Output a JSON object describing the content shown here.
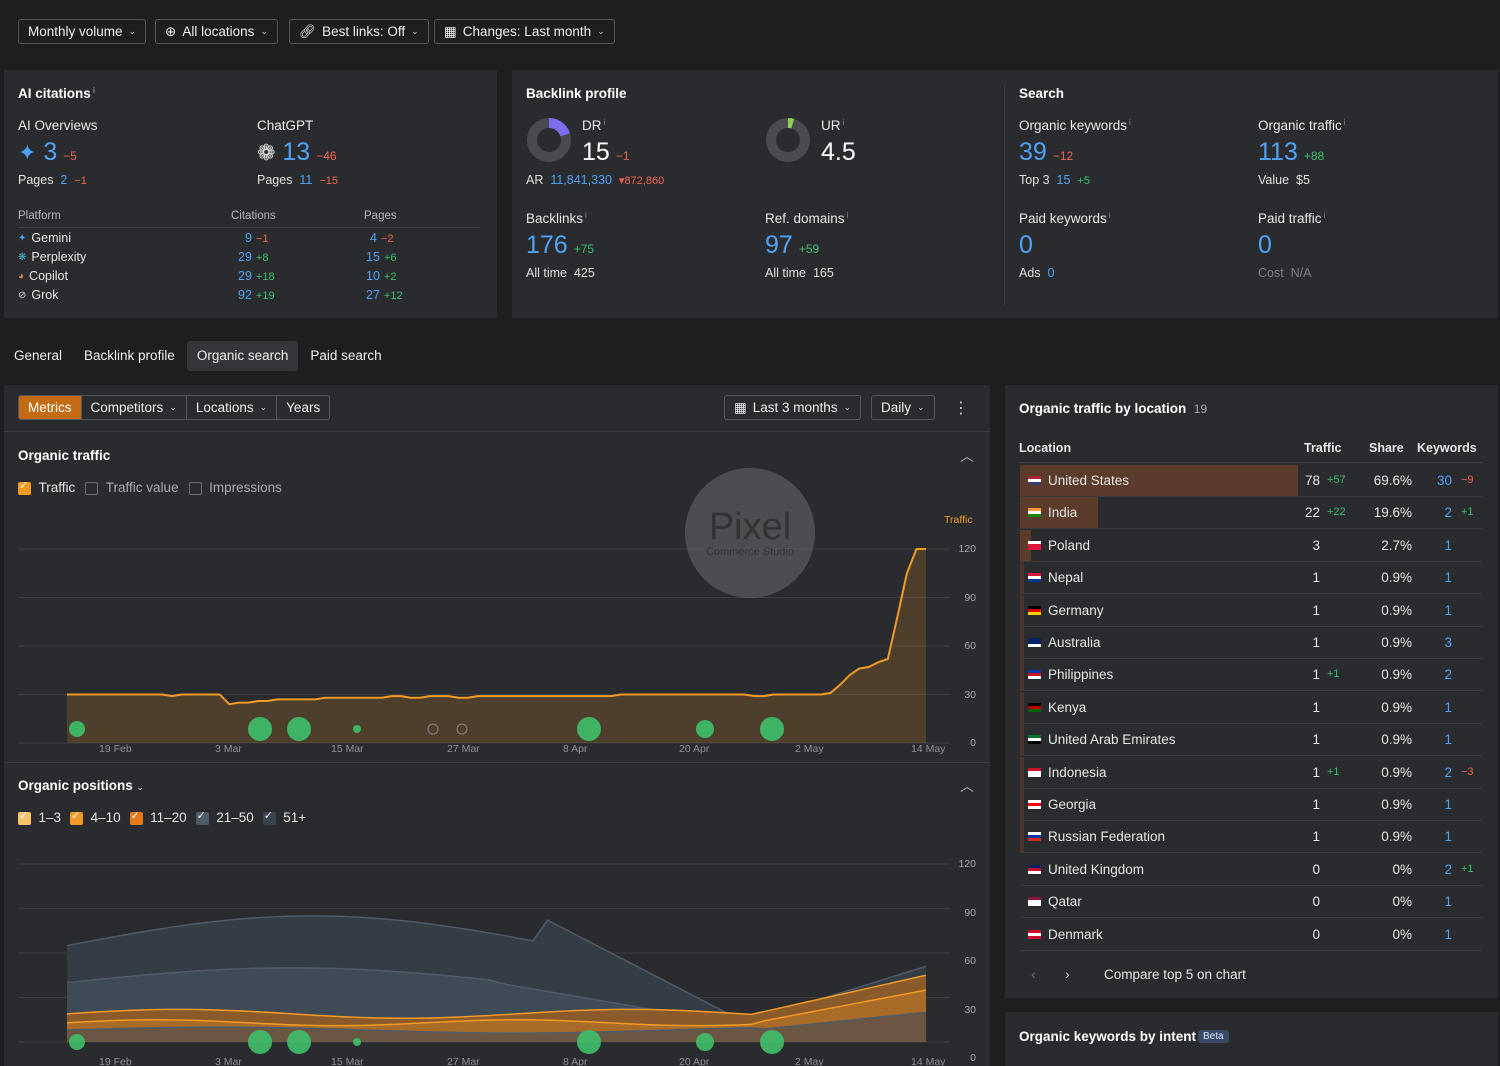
{
  "filters": {
    "volume": "Monthly volume",
    "locations": "All locations",
    "best_links": "Best links: Off",
    "changes": "Changes: Last month"
  },
  "ai_citations": {
    "title": "AI citations",
    "overviews": {
      "label": "AI Overviews",
      "value": "3",
      "delta": "−5",
      "pages_label": "Pages",
      "pages": "2",
      "pages_delta": "−1"
    },
    "chatgpt": {
      "label": "ChatGPT",
      "value": "13",
      "delta": "−46",
      "pages_label": "Pages",
      "pages": "11",
      "pages_delta": "−15"
    },
    "table_headers": {
      "platform": "Platform",
      "citations": "Citations",
      "pages": "Pages"
    },
    "platforms": [
      {
        "name": "Gemini",
        "citations": "9",
        "citations_delta": "−1",
        "pages": "4",
        "pages_delta": "−2"
      },
      {
        "name": "Perplexity",
        "citations": "29",
        "citations_delta": "+8",
        "pages": "15",
        "pages_delta": "+6"
      },
      {
        "name": "Copilot",
        "citations": "29",
        "citations_delta": "+18",
        "pages": "10",
        "pages_delta": "+2"
      },
      {
        "name": "Grok",
        "citations": "92",
        "citations_delta": "+19",
        "pages": "27",
        "pages_delta": "+12"
      }
    ]
  },
  "backlink_profile": {
    "title": "Backlink profile",
    "dr_label": "DR",
    "dr": "15",
    "dr_delta": "−1",
    "ur_label": "UR",
    "ur": "4.5",
    "ar_label": "AR",
    "ar": "11,841,330",
    "ar_delta": "▾872,860",
    "backlinks_label": "Backlinks",
    "backlinks": "176",
    "backlinks_delta": "+75",
    "backlinks_alltime_label": "All time",
    "backlinks_alltime": "425",
    "refdomains_label": "Ref. domains",
    "refdomains": "97",
    "refdomains_delta": "+59",
    "refdomains_alltime_label": "All time",
    "refdomains_alltime": "165"
  },
  "search": {
    "title": "Search",
    "organic_keywords_label": "Organic keywords",
    "organic_keywords": "39",
    "organic_keywords_delta": "−12",
    "top3_label": "Top 3",
    "top3": "15",
    "top3_delta": "+5",
    "organic_traffic_label": "Organic traffic",
    "organic_traffic": "113",
    "organic_traffic_delta": "+88",
    "value_label": "Value",
    "value": "$5",
    "paid_keywords_label": "Paid keywords",
    "paid_keywords": "0",
    "ads_label": "Ads",
    "ads": "0",
    "paid_traffic_label": "Paid traffic",
    "paid_traffic": "0",
    "cost_label": "Cost",
    "cost": "N/A"
  },
  "tabs": [
    "General",
    "Backlink profile",
    "Organic search",
    "Paid search"
  ],
  "chart_toolbar": {
    "metrics": "Metrics",
    "competitors": "Competitors",
    "locations": "Locations",
    "years": "Years",
    "range": "Last 3 months",
    "granularity": "Daily"
  },
  "organic_traffic": {
    "title": "Organic traffic",
    "checks": [
      {
        "label": "Traffic",
        "on": true
      },
      {
        "label": "Traffic value",
        "on": false
      },
      {
        "label": "Impressions",
        "on": false
      }
    ],
    "axis_label": "Traffic"
  },
  "watermark": {
    "line1": "Pixel",
    "line2": "Commerce Studio"
  },
  "organic_positions": {
    "title": "Organic positions",
    "checks": [
      "1–3",
      "4–10",
      "11–20",
      "21–50",
      "51+"
    ]
  },
  "chart_data": [
    {
      "type": "area",
      "title": "Organic traffic",
      "series": [
        {
          "name": "Traffic",
          "color": "#f39a26",
          "values": [
            30,
            30,
            30,
            30,
            30,
            30,
            30,
            30,
            30,
            30,
            30,
            29,
            30,
            30,
            30,
            30,
            30,
            24,
            25,
            25,
            26,
            26,
            27,
            27,
            27,
            27,
            27,
            28,
            28,
            28,
            28,
            28,
            28,
            28,
            29,
            29,
            28,
            28,
            29,
            29,
            29,
            28,
            28,
            29,
            29,
            29,
            29,
            29,
            29,
            29,
            29,
            29,
            29,
            29,
            29,
            29,
            29,
            29,
            30,
            30,
            30,
            30,
            30,
            30,
            30,
            30,
            30,
            30,
            30,
            30,
            30,
            30,
            29,
            29,
            30,
            30,
            30,
            30,
            30,
            30,
            31,
            36,
            42,
            46,
            47,
            50,
            52,
            78,
            105,
            120,
            120
          ]
        }
      ],
      "x_ticks": [
        "19 Feb",
        "3 Mar",
        "15 Mar",
        "27 Mar",
        "8 Apr",
        "20 Apr",
        "2 May",
        "14 May"
      ],
      "y_ticks": [
        "120",
        "90",
        "60",
        "30",
        "0"
      ],
      "ylim": [
        0,
        120
      ]
    },
    {
      "type": "area",
      "title": "Organic positions",
      "categories": [
        "1–3",
        "4–10",
        "11–20",
        "21–50",
        "51+"
      ],
      "x_ticks": [
        "19 Feb",
        "3 Mar",
        "15 Mar",
        "27 Mar",
        "8 Apr",
        "20 Apr",
        "2 May",
        "14 May"
      ],
      "y_ticks": [
        "120",
        "90",
        "60",
        "30",
        "0"
      ],
      "ylim": [
        0,
        120
      ]
    }
  ],
  "location_panel": {
    "title": "Organic traffic by location",
    "count": "19",
    "headers": {
      "location": "Location",
      "traffic": "Traffic",
      "share": "Share",
      "keywords": "Keywords"
    },
    "rows": [
      {
        "name": "United States",
        "traffic": "78",
        "traffic_delta": "+57",
        "share": "69.6%",
        "keywords": "30",
        "keywords_delta": "−9",
        "bar": 0.696
      },
      {
        "name": "India",
        "traffic": "22",
        "traffic_delta": "+22",
        "share": "19.6%",
        "keywords": "2",
        "keywords_delta": "+1",
        "bar": 0.196
      },
      {
        "name": "Poland",
        "traffic": "3",
        "traffic_delta": "",
        "share": "2.7%",
        "keywords": "1",
        "keywords_delta": "",
        "bar": 0.027
      },
      {
        "name": "Nepal",
        "traffic": "1",
        "traffic_delta": "",
        "share": "0.9%",
        "keywords": "1",
        "keywords_delta": "",
        "bar": 0.009
      },
      {
        "name": "Germany",
        "traffic": "1",
        "traffic_delta": "",
        "share": "0.9%",
        "keywords": "1",
        "keywords_delta": "",
        "bar": 0.009
      },
      {
        "name": "Australia",
        "traffic": "1",
        "traffic_delta": "",
        "share": "0.9%",
        "keywords": "3",
        "keywords_delta": "",
        "bar": 0.009
      },
      {
        "name": "Philippines",
        "traffic": "1",
        "traffic_delta": "+1",
        "share": "0.9%",
        "keywords": "2",
        "keywords_delta": "",
        "bar": 0.009
      },
      {
        "name": "Kenya",
        "traffic": "1",
        "traffic_delta": "",
        "share": "0.9%",
        "keywords": "1",
        "keywords_delta": "",
        "bar": 0.009
      },
      {
        "name": "United Arab Emirates",
        "traffic": "1",
        "traffic_delta": "",
        "share": "0.9%",
        "keywords": "1",
        "keywords_delta": "",
        "bar": 0.009
      },
      {
        "name": "Indonesia",
        "traffic": "1",
        "traffic_delta": "+1",
        "share": "0.9%",
        "keywords": "2",
        "keywords_delta": "−3",
        "bar": 0.009
      },
      {
        "name": "Georgia",
        "traffic": "1",
        "traffic_delta": "",
        "share": "0.9%",
        "keywords": "1",
        "keywords_delta": "",
        "bar": 0.009
      },
      {
        "name": "Russian Federation",
        "traffic": "1",
        "traffic_delta": "",
        "share": "0.9%",
        "keywords": "1",
        "keywords_delta": "",
        "bar": 0.009
      },
      {
        "name": "United Kingdom",
        "traffic": "0",
        "traffic_delta": "",
        "share": "0%",
        "keywords": "2",
        "keywords_delta": "+1",
        "bar": 0
      },
      {
        "name": "Qatar",
        "traffic": "0",
        "traffic_delta": "",
        "share": "0%",
        "keywords": "1",
        "keywords_delta": "",
        "bar": 0
      },
      {
        "name": "Denmark",
        "traffic": "0",
        "traffic_delta": "",
        "share": "0%",
        "keywords": "1",
        "keywords_delta": "",
        "bar": 0
      }
    ],
    "compare_label": "Compare top 5 on chart"
  },
  "intent_panel": {
    "title": "Organic keywords by intent",
    "badge": "Beta"
  }
}
